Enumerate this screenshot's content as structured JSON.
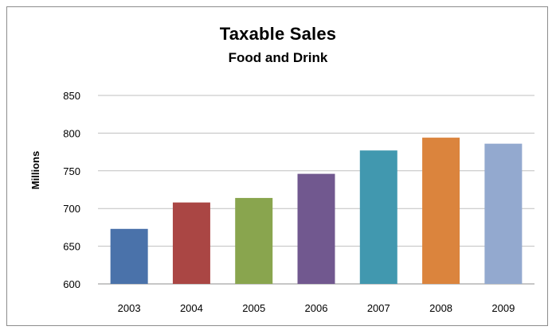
{
  "chart_data": {
    "type": "bar",
    "title": "Taxable Sales",
    "subtitle": "Food and Drink",
    "xlabel": "",
    "ylabel": "Millions",
    "categories": [
      "2003",
      "2004",
      "2005",
      "2006",
      "2007",
      "2008",
      "2009"
    ],
    "values": [
      673,
      708,
      714,
      746,
      777,
      794,
      786
    ],
    "colors": [
      "#4a72aa",
      "#aa4644",
      "#89a54e",
      "#71588f",
      "#4198af",
      "#db843d",
      "#93a9cf"
    ],
    "ylim": [
      600,
      850
    ],
    "yticks": [
      "600",
      "650",
      "700",
      "750",
      "800",
      "850"
    ],
    "grid": true,
    "legend": "none"
  }
}
